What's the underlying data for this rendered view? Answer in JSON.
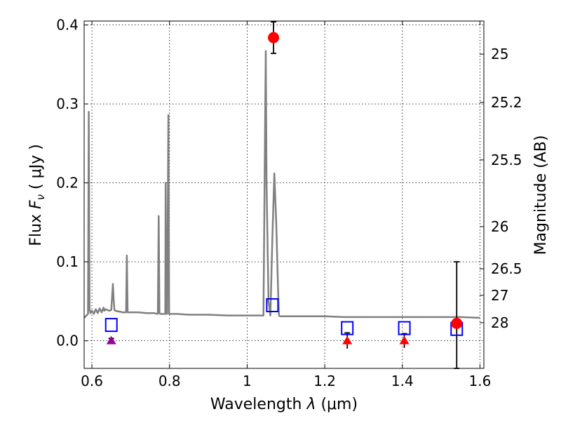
{
  "chart_data": {
    "type": "line",
    "xlabel_prefix": "Wavelength",
    "xlabel_symbol": "λ",
    "xlabel_unit": "(μm)",
    "ylabel_prefix": "Flux",
    "ylabel_symbol": "F",
    "ylabel_sub": "ν",
    "ylabel_unit": "( μJy )",
    "y2label": "Magnitude (AB)",
    "xlim": [
      0.58,
      1.61
    ],
    "ylim": [
      -0.035,
      0.405
    ],
    "grid": true,
    "xticks": [
      0.6,
      0.8,
      1.0,
      1.2,
      1.4,
      1.6
    ],
    "xtick_labels": [
      "0.6",
      "0.8",
      "1",
      "1.2",
      "1.4",
      "1.6"
    ],
    "yticks": [
      0.0,
      0.1,
      0.2,
      0.3,
      0.4
    ],
    "ytick_labels": [
      "0.0",
      "0.1",
      "0.2",
      "0.3",
      "0.4"
    ],
    "mag_ticks": [
      25,
      25.2,
      25.5,
      26,
      26.5,
      27,
      28
    ],
    "mag_tick_labels": [
      "25",
      "25.2",
      "25.5",
      "26",
      "26.5",
      "27",
      "28"
    ],
    "colors": {
      "spectrum": "#808080",
      "model": "#0000ff",
      "detection": "#ff0000",
      "upper_limit_red": "#ff0000",
      "upper_limit_purple": "#990099",
      "errorbar": "#000000"
    },
    "spectrum": {
      "x": [
        0.58,
        0.59,
        0.592,
        0.594,
        0.596,
        0.6,
        0.605,
        0.61,
        0.615,
        0.62,
        0.625,
        0.63,
        0.632,
        0.635,
        0.64,
        0.645,
        0.65,
        0.652,
        0.654,
        0.656,
        0.658,
        0.66,
        0.67,
        0.68,
        0.688,
        0.69,
        0.692,
        0.7,
        0.72,
        0.74,
        0.76,
        0.77,
        0.772,
        0.774,
        0.776,
        0.78,
        0.785,
        0.789,
        0.79,
        0.792,
        0.794,
        0.797,
        0.799,
        0.801,
        0.805,
        0.82,
        0.85,
        0.9,
        0.95,
        1.0,
        1.04,
        1.042,
        1.045,
        1.048,
        1.05,
        1.055,
        1.06,
        1.065,
        1.07,
        1.075,
        1.08,
        1.082,
        1.085,
        1.1,
        1.15,
        1.2,
        1.25,
        1.3,
        1.35,
        1.4,
        1.45,
        1.5,
        1.55,
        1.6
      ],
      "y": [
        0.029,
        0.034,
        0.29,
        0.04,
        0.035,
        0.038,
        0.034,
        0.04,
        0.035,
        0.041,
        0.036,
        0.042,
        0.038,
        0.04,
        0.039,
        0.038,
        0.039,
        0.055,
        0.072,
        0.052,
        0.039,
        0.038,
        0.037,
        0.036,
        0.036,
        0.108,
        0.036,
        0.036,
        0.036,
        0.035,
        0.035,
        0.034,
        0.158,
        0.035,
        0.034,
        0.034,
        0.034,
        0.034,
        0.2,
        0.034,
        0.034,
        0.286,
        0.034,
        0.034,
        0.034,
        0.034,
        0.033,
        0.033,
        0.032,
        0.032,
        0.032,
        0.032,
        0.2,
        0.367,
        0.2,
        0.05,
        0.032,
        0.13,
        0.212,
        0.15,
        0.06,
        0.032,
        0.031,
        0.031,
        0.031,
        0.031,
        0.03,
        0.03,
        0.03,
        0.03,
        0.03,
        0.03,
        0.03,
        0.029
      ]
    },
    "model_points": {
      "x": [
        0.65,
        1.065,
        1.258,
        1.405,
        1.54
      ],
      "y": [
        0.02,
        0.045,
        0.016,
        0.016,
        0.015
      ]
    },
    "detections": [
      {
        "x": 1.068,
        "y": 0.384,
        "err": 0.02
      },
      {
        "x": 1.54,
        "y": 0.022,
        "err_low": 0.057,
        "err_high": 0.078
      }
    ],
    "upper_limits": [
      {
        "x": 0.65,
        "y": 0.0,
        "err": 0.003,
        "color": "upper_limit_purple"
      },
      {
        "x": 1.258,
        "y": 0.0,
        "err": 0.01,
        "color": "upper_limit_red"
      },
      {
        "x": 1.405,
        "y": 0.0,
        "err": 0.009,
        "color": "upper_limit_red"
      }
    ]
  }
}
